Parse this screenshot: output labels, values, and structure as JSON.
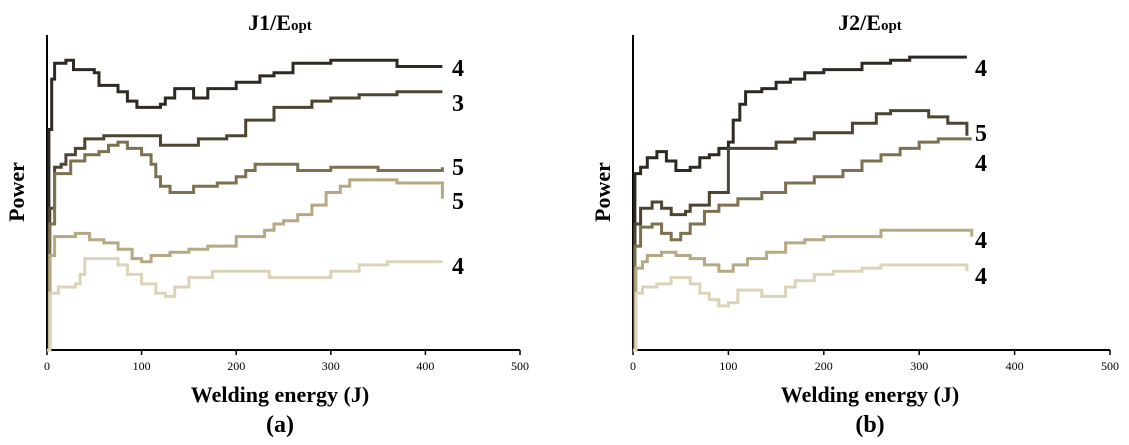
{
  "chart_data": [
    {
      "type": "line",
      "panel_label": "(a)",
      "title_main": "J1/E",
      "title_sub": "opt",
      "xlabel": "Welding energy (J)",
      "ylabel": "Power",
      "xlim": [
        0,
        500
      ],
      "ylim": [
        0,
        100
      ],
      "xticks": [
        0,
        100,
        200,
        300,
        400,
        500
      ],
      "series": [
        {
          "end_label": "4",
          "color": "#2e2a22",
          "points": [
            [
              0,
              0
            ],
            [
              2,
              70
            ],
            [
              5,
              86
            ],
            [
              8,
              91
            ],
            [
              20,
              92
            ],
            [
              28,
              89
            ],
            [
              50,
              88
            ],
            [
              55,
              84
            ],
            [
              70,
              84
            ],
            [
              75,
              82
            ],
            [
              85,
              79
            ],
            [
              95,
              77
            ],
            [
              120,
              78
            ],
            [
              125,
              80
            ],
            [
              130,
              80
            ],
            [
              135,
              83
            ],
            [
              150,
              83
            ],
            [
              155,
              80
            ],
            [
              165,
              80
            ],
            [
              170,
              83
            ],
            [
              185,
              83
            ],
            [
              200,
              85
            ],
            [
              225,
              87
            ],
            [
              240,
              88
            ],
            [
              260,
              91
            ],
            [
              300,
              92
            ],
            [
              365,
              92
            ],
            [
              370,
              90
            ],
            [
              418,
              90
            ]
          ]
        },
        {
          "end_label": "3",
          "color": "#4e4432",
          "points": [
            [
              0,
              0
            ],
            [
              3,
              45
            ],
            [
              8,
              58
            ],
            [
              15,
              59
            ],
            [
              20,
              62
            ],
            [
              30,
              64
            ],
            [
              40,
              67
            ],
            [
              60,
              68
            ],
            [
              110,
              68
            ],
            [
              120,
              65
            ],
            [
              140,
              65
            ],
            [
              160,
              67
            ],
            [
              190,
              68
            ],
            [
              210,
              73
            ],
            [
              240,
              77
            ],
            [
              280,
              79
            ],
            [
              300,
              80
            ],
            [
              330,
              81
            ],
            [
              365,
              81
            ],
            [
              370,
              82
            ],
            [
              418,
              82
            ]
          ]
        },
        {
          "end_label": "5",
          "color": "#7d7150",
          "points": [
            [
              0,
              0
            ],
            [
              3,
              40
            ],
            [
              8,
              56
            ],
            [
              25,
              60
            ],
            [
              40,
              62
            ],
            [
              55,
              63
            ],
            [
              65,
              65
            ],
            [
              75,
              66
            ],
            [
              85,
              64
            ],
            [
              100,
              62
            ],
            [
              110,
              59
            ],
            [
              115,
              55
            ],
            [
              120,
              52
            ],
            [
              130,
              50
            ],
            [
              150,
              50
            ],
            [
              155,
              52
            ],
            [
              180,
              53
            ],
            [
              200,
              55
            ],
            [
              210,
              57
            ],
            [
              220,
              59
            ],
            [
              260,
              59
            ],
            [
              265,
              57
            ],
            [
              300,
              58
            ],
            [
              330,
              58
            ],
            [
              350,
              57
            ],
            [
              418,
              58
            ]
          ]
        },
        {
          "end_label": "5",
          "color": "#b6a882",
          "points": [
            [
              0,
              0
            ],
            [
              3,
              30
            ],
            [
              8,
              36
            ],
            [
              20,
              36
            ],
            [
              30,
              37
            ],
            [
              45,
              35
            ],
            [
              60,
              34
            ],
            [
              75,
              32
            ],
            [
              90,
              29
            ],
            [
              100,
              28
            ],
            [
              110,
              30
            ],
            [
              130,
              31
            ],
            [
              150,
              32
            ],
            [
              170,
              33
            ],
            [
              200,
              36
            ],
            [
              230,
              38
            ],
            [
              240,
              40
            ],
            [
              250,
              41
            ],
            [
              265,
              43
            ],
            [
              280,
              46
            ],
            [
              295,
              50
            ],
            [
              310,
              52
            ],
            [
              320,
              54
            ],
            [
              360,
              54
            ],
            [
              370,
              53
            ],
            [
              405,
              53
            ],
            [
              418,
              48
            ]
          ]
        },
        {
          "end_label": "4",
          "color": "#ded3b8",
          "points": [
            [
              0,
              0
            ],
            [
              3,
              18
            ],
            [
              12,
              20
            ],
            [
              30,
              21
            ],
            [
              35,
              24
            ],
            [
              40,
              29
            ],
            [
              60,
              29
            ],
            [
              75,
              27
            ],
            [
              85,
              24
            ],
            [
              100,
              21
            ],
            [
              115,
              18
            ],
            [
              125,
              17
            ],
            [
              135,
              20
            ],
            [
              150,
              23
            ],
            [
              175,
              25
            ],
            [
              200,
              25
            ],
            [
              235,
              23
            ],
            [
              255,
              23
            ],
            [
              300,
              25
            ],
            [
              320,
              25
            ],
            [
              330,
              27
            ],
            [
              355,
              27
            ],
            [
              360,
              28
            ],
            [
              418,
              28
            ]
          ]
        }
      ]
    },
    {
      "type": "line",
      "panel_label": "(b)",
      "title_main": "J2/E",
      "title_sub": "opt",
      "xlabel": "Welding energy (J)",
      "ylabel": "Power",
      "xlim": [
        0,
        500
      ],
      "ylim": [
        0,
        100
      ],
      "xticks": [
        0,
        100,
        200,
        300,
        400,
        500
      ],
      "series": [
        {
          "end_label": "4",
          "color": "#2e2a22",
          "points": [
            [
              0,
              0
            ],
            [
              2,
              56
            ],
            [
              8,
              58
            ],
            [
              15,
              61
            ],
            [
              25,
              63
            ],
            [
              35,
              60
            ],
            [
              45,
              57
            ],
            [
              60,
              58
            ],
            [
              70,
              61
            ],
            [
              80,
              62
            ],
            [
              90,
              64
            ],
            [
              100,
              66
            ],
            [
              105,
              73
            ],
            [
              112,
              78
            ],
            [
              118,
              82
            ],
            [
              135,
              83
            ],
            [
              150,
              85
            ],
            [
              165,
              86
            ],
            [
              180,
              88
            ],
            [
              200,
              89
            ],
            [
              240,
              91
            ],
            [
              270,
              92
            ],
            [
              290,
              93
            ],
            [
              350,
              93
            ]
          ]
        },
        {
          "end_label": "5",
          "color": "#4e4432",
          "points": [
            [
              0,
              0
            ],
            [
              2,
              40
            ],
            [
              8,
              45
            ],
            [
              20,
              47
            ],
            [
              30,
              45
            ],
            [
              40,
              43
            ],
            [
              55,
              44
            ],
            [
              60,
              46
            ],
            [
              80,
              50
            ],
            [
              100,
              64
            ],
            [
              120,
              64
            ],
            [
              150,
              66
            ],
            [
              170,
              67
            ],
            [
              190,
              69
            ],
            [
              230,
              72
            ],
            [
              255,
              75
            ],
            [
              270,
              76
            ],
            [
              295,
              76
            ],
            [
              310,
              74
            ],
            [
              330,
              72
            ],
            [
              350,
              68
            ]
          ]
        },
        {
          "end_label": "4",
          "color": "#7d7150",
          "points": [
            [
              0,
              0
            ],
            [
              2,
              33
            ],
            [
              8,
              39
            ],
            [
              20,
              40
            ],
            [
              30,
              37
            ],
            [
              40,
              35
            ],
            [
              50,
              37
            ],
            [
              60,
              40
            ],
            [
              75,
              44
            ],
            [
              90,
              46
            ],
            [
              110,
              48
            ],
            [
              135,
              50
            ],
            [
              160,
              53
            ],
            [
              190,
              55
            ],
            [
              220,
              57
            ],
            [
              240,
              60
            ],
            [
              260,
              62
            ],
            [
              280,
              64
            ],
            [
              300,
              66
            ],
            [
              320,
              67
            ],
            [
              355,
              67
            ]
          ]
        },
        {
          "end_label": "4",
          "color": "#b6a882",
          "points": [
            [
              0,
              0
            ],
            [
              3,
              26
            ],
            [
              10,
              28
            ],
            [
              15,
              30
            ],
            [
              30,
              31
            ],
            [
              45,
              30
            ],
            [
              60,
              29
            ],
            [
              75,
              27
            ],
            [
              90,
              25
            ],
            [
              105,
              27
            ],
            [
              120,
              29
            ],
            [
              140,
              31
            ],
            [
              160,
              34
            ],
            [
              180,
              35
            ],
            [
              200,
              36
            ],
            [
              240,
              36
            ],
            [
              260,
              38
            ],
            [
              330,
              38
            ],
            [
              355,
              36
            ]
          ]
        },
        {
          "end_label": "4",
          "color": "#ded3b8",
          "points": [
            [
              0,
              0
            ],
            [
              3,
              18
            ],
            [
              10,
              20
            ],
            [
              25,
              21
            ],
            [
              40,
              23
            ],
            [
              60,
              21
            ],
            [
              70,
              18
            ],
            [
              80,
              16
            ],
            [
              90,
              14
            ],
            [
              100,
              15
            ],
            [
              110,
              19
            ],
            [
              130,
              19
            ],
            [
              135,
              17
            ],
            [
              150,
              17
            ],
            [
              160,
              20
            ],
            [
              170,
              22
            ],
            [
              190,
              24
            ],
            [
              210,
              25
            ],
            [
              240,
              26
            ],
            [
              260,
              27
            ],
            [
              300,
              27
            ],
            [
              350,
              25
            ]
          ]
        }
      ]
    }
  ]
}
